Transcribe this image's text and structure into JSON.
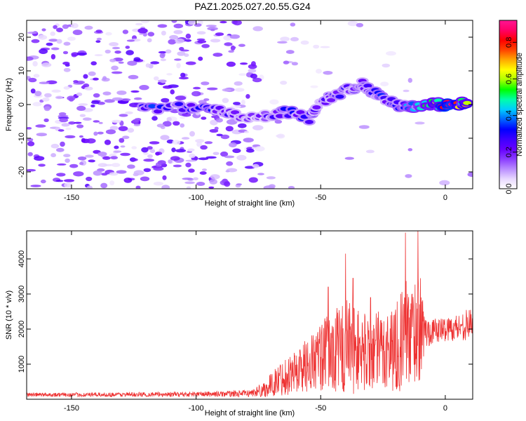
{
  "title": "PAZ1.2025.027.20.55.G24",
  "chart_data": [
    {
      "type": "heatmap",
      "name": "spectrogram",
      "xlabel": "Height of straight line (km)",
      "ylabel": "Frequency (Hz)",
      "xlim": [
        -168,
        11
      ],
      "ylim": [
        -25,
        25
      ],
      "x_ticks": [
        -150,
        -100,
        -50,
        0
      ],
      "y_ticks": [
        -20,
        -10,
        0,
        10,
        20
      ],
      "colorbar": {
        "label": "Normalized spectral amplitude",
        "range": [
          0.0,
          0.92
        ],
        "ticks": [
          "0.0",
          "0.2",
          "0.4",
          "0.6",
          "0.8"
        ],
        "colormap": [
          "#ffffff",
          "#e8d8ff",
          "#b98cff",
          "#8a3cff",
          "#6600ff",
          "#3d00ff",
          "#0000ff",
          "#0066ff",
          "#00ccff",
          "#00ffaa",
          "#00ff00",
          "#aaff00",
          "#ffff00",
          "#ffaa00",
          "#ff4400",
          "#ff0000",
          "#ff0066",
          "#ff1493"
        ]
      },
      "feature_track": {
        "description_points_x": [
          -122,
          -105,
          -92,
          -85,
          -75,
          -65,
          -55,
          -47,
          -40,
          -33,
          -28,
          -20,
          -12,
          -5,
          0,
          5,
          10
        ],
        "description_points_y": [
          -1,
          -1,
          -1,
          -3,
          -4,
          -2,
          -4,
          2,
          4,
          6,
          3,
          0,
          -1,
          0,
          0,
          0,
          1
        ],
        "peak_amplitude": [
          0.35,
          0.3,
          0.32,
          0.25,
          0.2,
          0.3,
          0.3,
          0.25,
          0.28,
          0.3,
          0.35,
          0.3,
          0.45,
          0.6,
          0.85,
          0.8,
          0.65
        ]
      }
    },
    {
      "type": "line",
      "name": "snr",
      "xlabel": "Height of straight line (km)",
      "ylabel": "SNR (10 * v/v)",
      "xlim": [
        -168,
        11
      ],
      "ylim": [
        0,
        4800
      ],
      "x_ticks": [
        -150,
        -100,
        -50,
        0
      ],
      "y_ticks": [
        1000,
        2000,
        3000,
        4000
      ],
      "color": "#ee3333",
      "envelope_x": [
        -168,
        -140,
        -110,
        -90,
        -78,
        -72,
        -66,
        -60,
        -55,
        -50,
        -45,
        -42,
        -40,
        -37,
        -35,
        -30,
        -25,
        -20,
        -17,
        -15,
        -12,
        -10,
        -8,
        -5,
        0,
        5,
        10,
        11
      ],
      "envelope_mean": [
        130,
        130,
        140,
        150,
        170,
        300,
        600,
        800,
        1000,
        1200,
        1350,
        1400,
        1500,
        1450,
        1400,
        1300,
        1400,
        1500,
        1700,
        1900,
        2000,
        2000,
        1900,
        1950,
        2000,
        2050,
        2150,
        2300
      ],
      "envelope_spread": [
        60,
        60,
        70,
        80,
        100,
        250,
        500,
        650,
        800,
        1000,
        1200,
        1300,
        1500,
        1300,
        1200,
        1100,
        1200,
        1300,
        1500,
        1600,
        1600,
        1500,
        500,
        350,
        350,
        400,
        450,
        500
      ],
      "peaks": [
        {
          "x": -40,
          "y": 4150
        },
        {
          "x": -37,
          "y": 3450
        },
        {
          "x": -16,
          "y": 4750
        },
        {
          "x": -11,
          "y": 4800
        },
        {
          "x": -47,
          "y": 3200
        },
        {
          "x": -30,
          "y": 2900
        }
      ]
    }
  ]
}
